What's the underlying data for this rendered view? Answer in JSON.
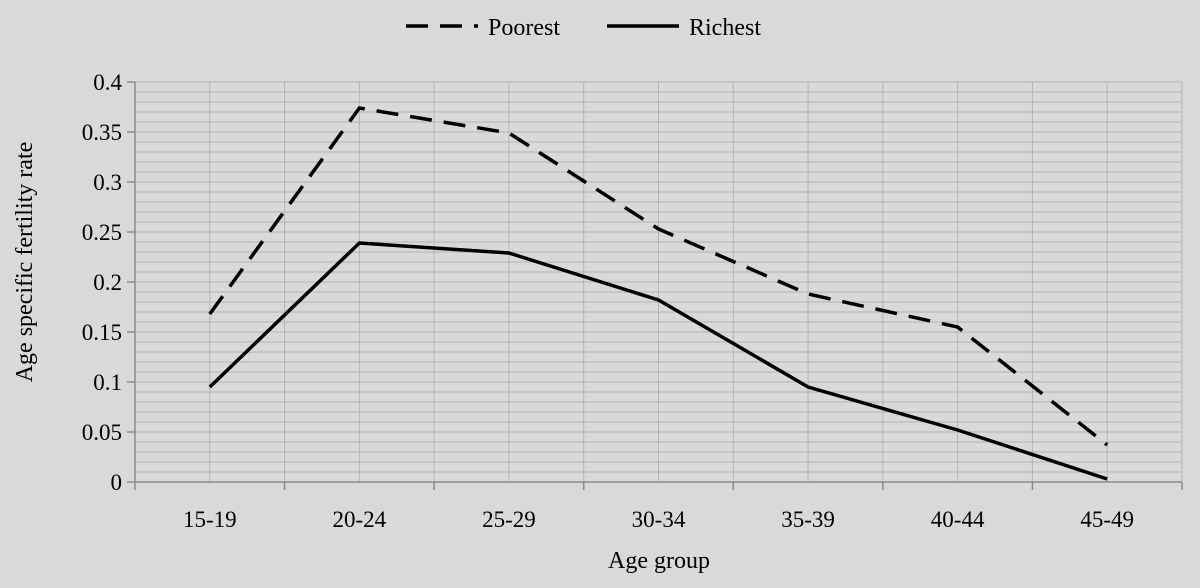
{
  "chart_data": {
    "type": "line",
    "title": "",
    "xlabel": "Age group",
    "ylabel": "Age specific fertility rate",
    "categories": [
      "15-19",
      "20-24",
      "25-29",
      "30-34",
      "35-39",
      "40-44",
      "45-49"
    ],
    "ylim": [
      0,
      0.4
    ],
    "yticks": [
      "0",
      "0.05",
      "0.1",
      "0.15",
      "0.2",
      "0.25",
      "0.3",
      "0.35",
      "0.4"
    ],
    "grid": true,
    "legend_position": "top-center",
    "series": [
      {
        "name": "Poorest",
        "style": "dashed",
        "color": "#000000",
        "values": [
          0.168,
          0.374,
          0.349,
          0.253,
          0.188,
          0.155,
          0.037
        ]
      },
      {
        "name": "Richest",
        "style": "solid",
        "color": "#000000",
        "values": [
          0.095,
          0.239,
          0.229,
          0.182,
          0.095,
          0.052,
          0.003
        ]
      }
    ],
    "background_color": "#d9d9d9",
    "grid_color": "#b4b4b4"
  }
}
